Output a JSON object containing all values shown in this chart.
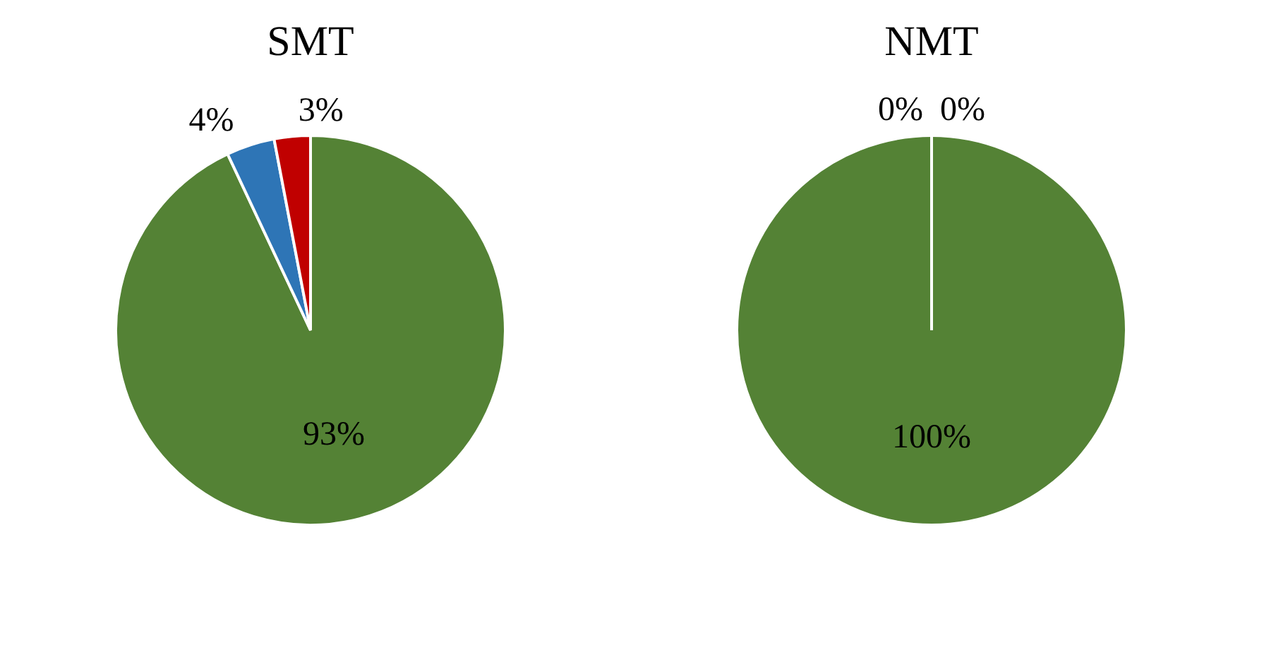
{
  "chart_data": [
    {
      "type": "pie",
      "title": "SMT",
      "categories": [
        null,
        null,
        null
      ],
      "values": [
        93,
        4,
        3
      ],
      "colors": [
        "#548235",
        "#2e75b6",
        "#c00000"
      ],
      "value_labels": [
        "93%",
        "4%",
        "3%"
      ]
    },
    {
      "type": "pie",
      "title": "NMT",
      "categories": [
        null,
        null,
        null
      ],
      "values": [
        100,
        0,
        0
      ],
      "colors": [
        "#548235",
        "#2e75b6",
        "#c00000"
      ],
      "value_labels": [
        "100%",
        "0%",
        "0%"
      ]
    }
  ]
}
